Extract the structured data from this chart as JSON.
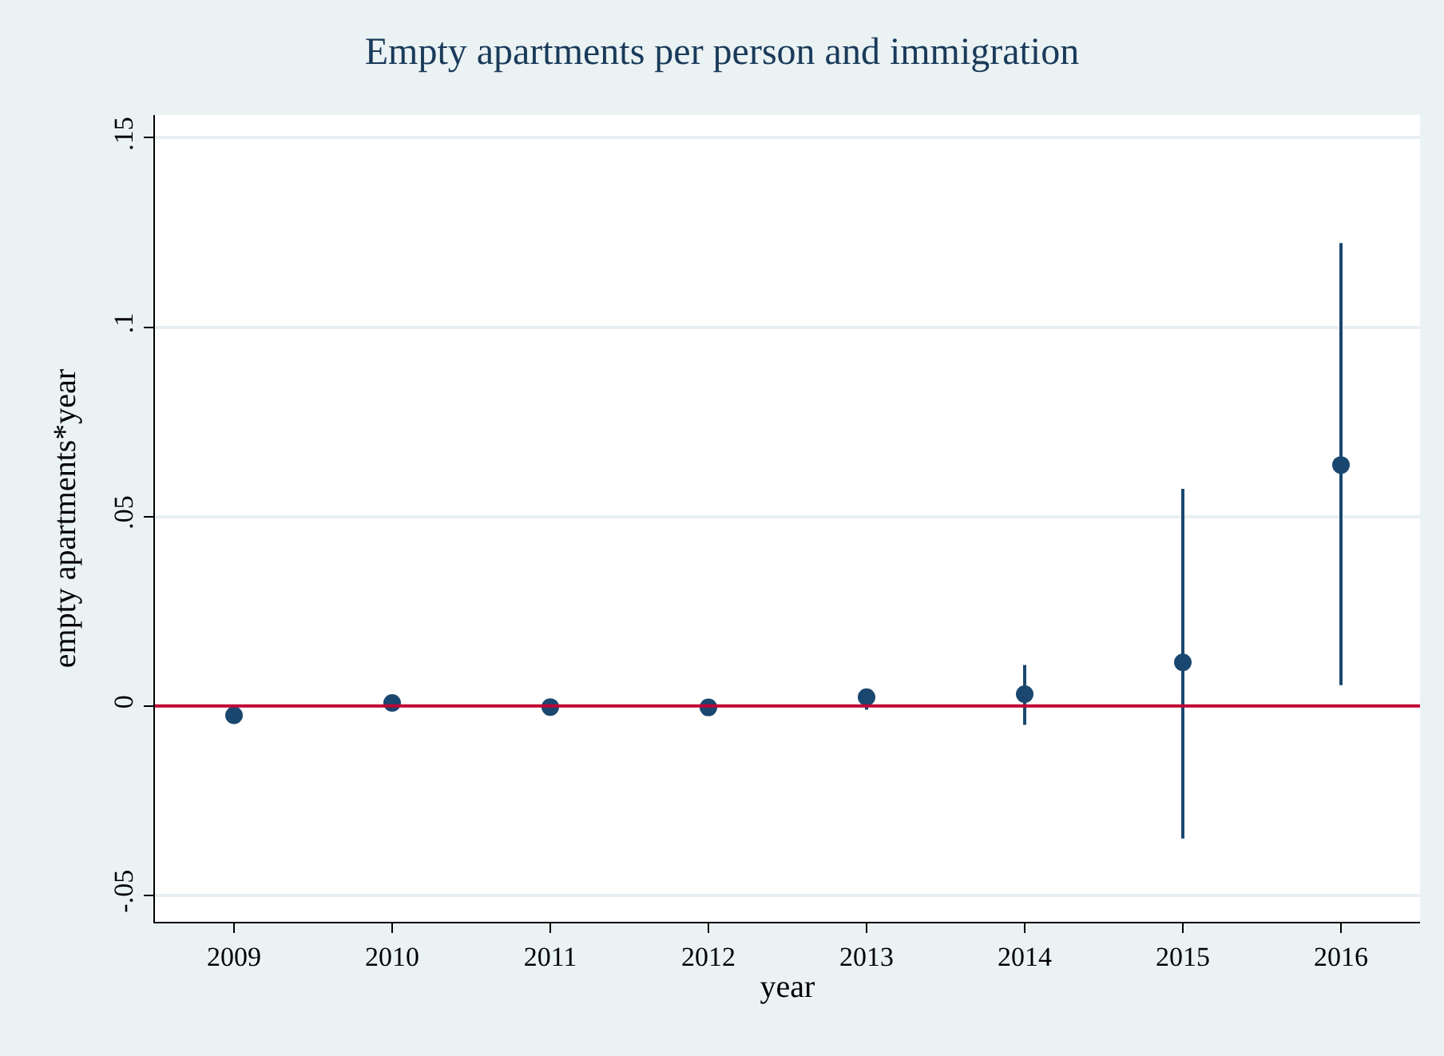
{
  "chart_data": {
    "type": "scatter",
    "title": "Empty apartments per person and immigration",
    "xlabel": "year",
    "ylabel": "empty apartments*year",
    "x": [
      2009,
      2010,
      2011,
      2012,
      2013,
      2014,
      2015,
      2016
    ],
    "series": [
      {
        "color": "#1a476f",
        "values": [
          -0.0025,
          0.0008,
          -0.0003,
          -0.0004,
          0.0023,
          0.0031,
          0.0115,
          0.0636
        ],
        "errors": [
          null,
          null,
          null,
          null,
          [
            -0.001,
            0.0045
          ],
          [
            -0.005,
            0.0108
          ],
          [
            -0.035,
            0.0573
          ],
          [
            0.0055,
            0.1222
          ]
        ]
      }
    ],
    "xlim": [
      2008.5,
      2016.5
    ],
    "xticks": [
      2009,
      2010,
      2011,
      2012,
      2013,
      2014,
      2015,
      2016
    ],
    "ylim": [
      -0.057,
      0.156
    ],
    "yticks": [
      {
        "value": -0.05,
        "label": "-.05"
      },
      0,
      {
        "value": 0.05,
        "label": ".05"
      },
      {
        "value": 0.1,
        "label": ".1"
      },
      {
        "value": 0.15,
        "label": ".15"
      }
    ],
    "ref_lines": [
      {
        "axis": "y",
        "value": 0,
        "color": "#c10534"
      }
    ],
    "grid": "y",
    "marker": "circle"
  }
}
